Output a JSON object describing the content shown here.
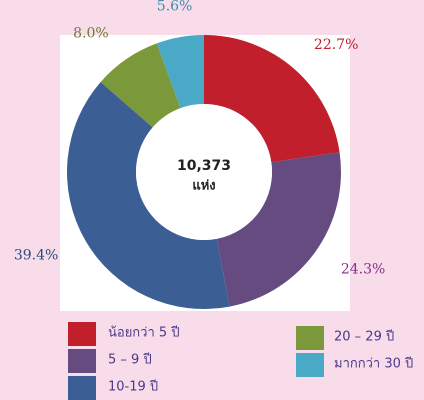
{
  "chart_data": {
    "type": "donut",
    "center_text": [
      "10,373",
      "แห่ง"
    ],
    "categories": [
      "น้อยกว่า 5 ปี",
      "5 – 9 ปี",
      "10-19 ปี",
      "20 – 29 ปี",
      "มากกว่า 30 ปี"
    ],
    "values": [
      22.7,
      24.3,
      39.4,
      8.0,
      5.6
    ],
    "value_labels": [
      "22.7%",
      "24.3%",
      "39.4%",
      "8.0%",
      "5.6%"
    ],
    "colors": [
      "#c01f2b",
      "#654b7f",
      "#3b5f95",
      "#7b983a",
      "#4aa9c6"
    ],
    "label_colors": [
      "#c01f2b",
      "#8a2d8e",
      "#2f4a7a",
      "#6b7d2a",
      "#3a8fb0"
    ]
  }
}
